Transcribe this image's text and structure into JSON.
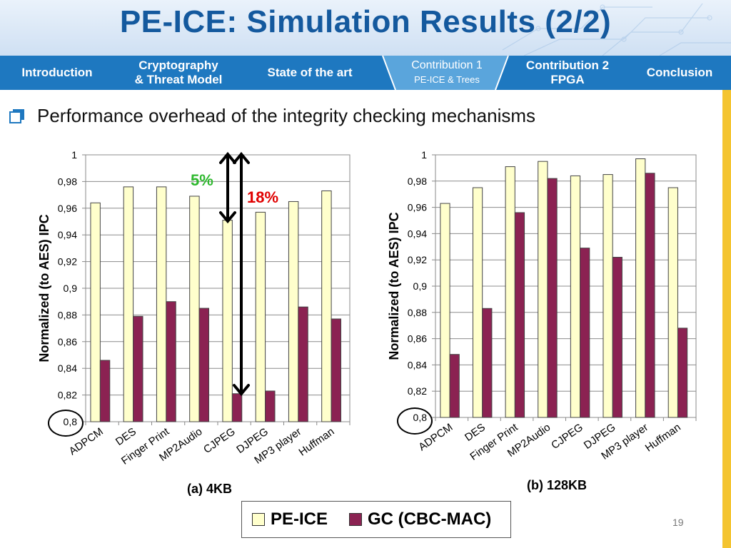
{
  "title": "PE-ICE: Simulation Results (2/2)",
  "nav": {
    "items": [
      {
        "line1": "Introduction",
        "line2": ""
      },
      {
        "line1": "Cryptography",
        "line2": "& Threat Model"
      },
      {
        "line1": "State of the art",
        "line2": ""
      },
      {
        "line1": "Contribution 1",
        "line2": "PE-ICE & Trees"
      },
      {
        "line1": "Contribution 2",
        "line2": "FPGA"
      },
      {
        "line1": "Conclusion",
        "line2": ""
      }
    ],
    "active_index": 3
  },
  "bullet": "Performance overhead of the integrity checking mechanisms",
  "annotations": {
    "small": "5%",
    "large": "18%"
  },
  "colors": {
    "title": "#14599e",
    "nav": "#1e78c0",
    "nav_active": "#5aa5dc",
    "pe_ice": "#ffffcc",
    "gc": "#8b2252",
    "small_annotation": "#2eb82e",
    "large_annotation": "#e00000",
    "side_bar": "#f4c430"
  },
  "legend": {
    "pe_ice": "PE-ICE",
    "gc": "GC (CBC-MAC)"
  },
  "page_number": "19",
  "chart_data": [
    {
      "type": "bar",
      "caption": "(a) 4KB",
      "ylabel": "Normalized (to AES) IPC",
      "ylim": [
        0.8,
        1
      ],
      "yticks": [
        "0,8",
        "0,82",
        "0,84",
        "0,86",
        "0,88",
        "0,9",
        "0,92",
        "0,94",
        "0,96",
        "0,98",
        "1"
      ],
      "categories": [
        "ADPCM",
        "DES",
        "Finger Print",
        "MP2Audio",
        "CJPEG",
        "DJPEG",
        "MP3 player",
        "Huffman"
      ],
      "series": [
        {
          "name": "PE-ICE",
          "values": [
            0.964,
            0.976,
            0.976,
            0.969,
            0.951,
            0.957,
            0.965,
            0.973
          ]
        },
        {
          "name": "GC (CBC-MAC)",
          "values": [
            0.846,
            0.879,
            0.89,
            0.885,
            0.821,
            0.823,
            0.886,
            0.877
          ]
        }
      ],
      "grid": true,
      "legend_position": "bottom"
    },
    {
      "type": "bar",
      "caption": "(b) 128KB",
      "ylabel": "Normalized (to AES) IPC",
      "ylim": [
        0.8,
        1
      ],
      "yticks": [
        "0,8",
        "0,82",
        "0,84",
        "0,86",
        "0,88",
        "0,9",
        "0,92",
        "0,94",
        "0,96",
        "0,98",
        "1"
      ],
      "categories": [
        "ADPCM",
        "DES",
        "Finger Print",
        "MP2Audio",
        "CJPEG",
        "DJPEG",
        "MP3 player",
        "Huffman"
      ],
      "series": [
        {
          "name": "PE-ICE",
          "values": [
            0.963,
            0.975,
            0.991,
            0.995,
            0.984,
            0.985,
            0.997,
            0.975
          ]
        },
        {
          "name": "GC (CBC-MAC)",
          "values": [
            0.848,
            0.883,
            0.956,
            0.982,
            0.929,
            0.922,
            0.986,
            0.868
          ]
        }
      ],
      "grid": true,
      "legend_position": "bottom"
    }
  ]
}
